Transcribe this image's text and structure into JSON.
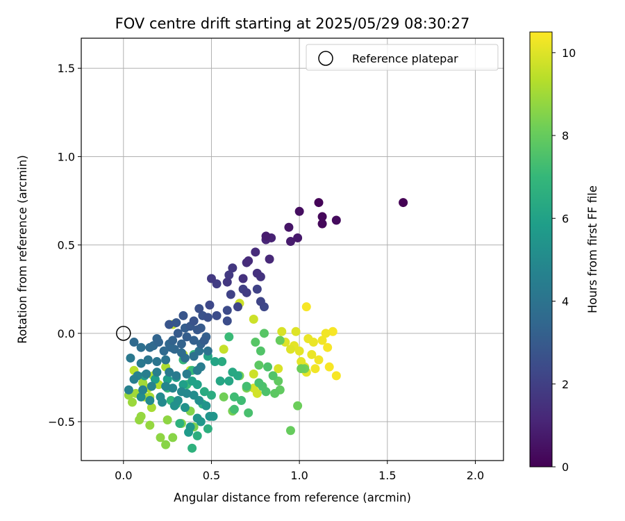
{
  "chart_data": {
    "type": "scatter",
    "title": "FOV centre drift starting at 2025/05/29 08:30:27",
    "xlabel": "Angular distance from reference (arcmin)",
    "ylabel": "Rotation from reference (arcmin)",
    "xlim": [
      -0.24,
      2.16
    ],
    "ylim": [
      -0.72,
      1.67
    ],
    "x_ticks": [
      0.0,
      0.5,
      1.0,
      1.5,
      2.0
    ],
    "x_tick_labels": [
      "0.0",
      "0.5",
      "1.0",
      "1.5",
      "2.0"
    ],
    "y_ticks": [
      -0.5,
      0.0,
      0.5,
      1.0,
      1.5
    ],
    "y_tick_labels": [
      "−0.5",
      "0.0",
      "0.5",
      "1.0",
      "1.5"
    ],
    "grid": true,
    "legend": {
      "position": "upper right",
      "entries": [
        "Reference platepar"
      ]
    },
    "reference_point": {
      "x": 0.0,
      "y": 0.0
    },
    "colorbar": {
      "label": "Hours from first FF file",
      "min": 0,
      "max": 10.5,
      "ticks": [
        0,
        2,
        4,
        6,
        8,
        10
      ],
      "tick_labels": [
        "0",
        "2",
        "4",
        "6",
        "8",
        "10"
      ],
      "colormap": [
        "#440154",
        "#482878",
        "#3e4989",
        "#31688e",
        "#26828e",
        "#1f9e89",
        "#35b779",
        "#6ece58",
        "#b5de2b",
        "#fde725"
      ]
    },
    "points": [
      [
        1.59,
        0.74,
        0.0
      ],
      [
        1.11,
        0.74,
        0.1
      ],
      [
        1.13,
        0.66,
        0.2
      ],
      [
        1.13,
        0.62,
        0.2
      ],
      [
        1.21,
        0.64,
        0.3
      ],
      [
        1.0,
        0.69,
        0.4
      ],
      [
        0.94,
        0.6,
        0.6
      ],
      [
        0.99,
        0.54,
        0.7
      ],
      [
        0.95,
        0.52,
        0.8
      ],
      [
        0.81,
        0.55,
        0.8
      ],
      [
        0.84,
        0.54,
        1.0
      ],
      [
        0.81,
        0.53,
        1.1
      ],
      [
        0.75,
        0.46,
        1.3
      ],
      [
        0.83,
        0.42,
        1.2
      ],
      [
        0.71,
        0.41,
        1.3
      ],
      [
        0.7,
        0.4,
        1.4
      ],
      [
        0.76,
        0.34,
        1.5
      ],
      [
        0.78,
        0.32,
        1.6
      ],
      [
        0.68,
        0.31,
        1.5
      ],
      [
        0.62,
        0.37,
        1.7
      ],
      [
        0.6,
        0.33,
        1.8
      ],
      [
        0.59,
        0.29,
        1.7
      ],
      [
        0.5,
        0.31,
        1.8
      ],
      [
        0.53,
        0.28,
        1.9
      ],
      [
        0.68,
        0.25,
        2.0
      ],
      [
        0.76,
        0.25,
        2.1
      ],
      [
        0.7,
        0.23,
        1.9
      ],
      [
        0.61,
        0.22,
        2.1
      ],
      [
        0.78,
        0.18,
        2.2
      ],
      [
        0.8,
        0.15,
        2.3
      ],
      [
        0.65,
        0.15,
        2.2
      ],
      [
        0.59,
        0.13,
        2.4
      ],
      [
        0.49,
        0.16,
        2.3
      ],
      [
        0.59,
        0.07,
        2.5
      ],
      [
        0.53,
        0.1,
        2.5
      ],
      [
        0.48,
        0.09,
        2.6
      ],
      [
        0.45,
        0.1,
        2.7
      ],
      [
        0.43,
        0.14,
        2.6
      ],
      [
        0.34,
        0.1,
        2.8
      ],
      [
        0.3,
        0.06,
        2.9
      ],
      [
        0.26,
        0.05,
        2.8
      ],
      [
        0.4,
        0.07,
        2.7
      ],
      [
        0.38,
        0.04,
        2.9
      ],
      [
        0.42,
        0.02,
        2.9
      ],
      [
        0.44,
        0.03,
        3.0
      ],
      [
        0.35,
        0.03,
        3.1
      ],
      [
        0.31,
        0.0,
        3.0
      ],
      [
        0.36,
        -0.02,
        3.1
      ],
      [
        0.4,
        -0.04,
        3.2
      ],
      [
        0.46,
        -0.04,
        3.1
      ],
      [
        0.47,
        -0.02,
        3.2
      ],
      [
        0.44,
        -0.06,
        3.3
      ],
      [
        0.33,
        -0.06,
        3.3
      ],
      [
        0.28,
        -0.04,
        3.3
      ],
      [
        0.19,
        -0.03,
        3.4
      ],
      [
        0.2,
        -0.05,
        3.4
      ],
      [
        0.26,
        -0.06,
        3.5
      ],
      [
        0.27,
        -0.08,
        3.5
      ],
      [
        0.29,
        -0.09,
        3.5
      ],
      [
        0.23,
        -0.1,
        3.6
      ],
      [
        0.17,
        -0.07,
        3.6
      ],
      [
        0.15,
        -0.08,
        3.7
      ],
      [
        0.1,
        -0.08,
        3.8
      ],
      [
        0.06,
        -0.05,
        3.6
      ],
      [
        0.33,
        -0.11,
        3.7
      ],
      [
        0.35,
        -0.14,
        3.8
      ],
      [
        0.4,
        -0.13,
        3.9
      ],
      [
        0.43,
        -0.1,
        3.9
      ],
      [
        0.48,
        -0.1,
        4.0
      ],
      [
        0.24,
        -0.15,
        4.0
      ],
      [
        0.19,
        -0.16,
        4.1
      ],
      [
        0.14,
        -0.15,
        4.1
      ],
      [
        0.1,
        -0.17,
        4.2
      ],
      [
        0.04,
        -0.14,
        4.2
      ],
      [
        0.26,
        -0.22,
        4.3
      ],
      [
        0.3,
        -0.24,
        4.3
      ],
      [
        0.36,
        -0.23,
        4.4
      ],
      [
        0.42,
        -0.21,
        4.4
      ],
      [
        0.44,
        -0.19,
        4.4
      ],
      [
        0.19,
        -0.22,
        4.5
      ],
      [
        0.13,
        -0.23,
        4.5
      ],
      [
        0.08,
        -0.24,
        4.6
      ],
      [
        0.06,
        -0.26,
        4.5
      ],
      [
        0.03,
        -0.32,
        4.6
      ],
      [
        0.11,
        -0.32,
        4.7
      ],
      [
        0.16,
        -0.3,
        4.7
      ],
      [
        0.24,
        -0.3,
        4.8
      ],
      [
        0.28,
        -0.31,
        4.8
      ],
      [
        0.33,
        -0.33,
        4.9
      ],
      [
        0.36,
        -0.34,
        4.9
      ],
      [
        0.21,
        -0.36,
        5.0
      ],
      [
        0.22,
        -0.39,
        5.0
      ],
      [
        0.15,
        -0.38,
        5.0
      ],
      [
        0.1,
        -0.36,
        5.1
      ],
      [
        0.4,
        -0.35,
        5.1
      ],
      [
        0.43,
        -0.38,
        5.2
      ],
      [
        0.29,
        -0.41,
        5.3
      ],
      [
        0.31,
        -0.38,
        5.2
      ],
      [
        0.35,
        -0.42,
        5.3
      ],
      [
        0.47,
        -0.41,
        5.4
      ],
      [
        0.49,
        -0.47,
        5.4
      ],
      [
        0.51,
        -0.47,
        5.5
      ],
      [
        0.42,
        -0.48,
        5.5
      ],
      [
        0.44,
        -0.5,
        5.6
      ],
      [
        0.38,
        -0.53,
        5.6
      ],
      [
        0.37,
        -0.56,
        5.7
      ],
      [
        0.12,
        -0.24,
        5.7
      ],
      [
        0.18,
        -0.26,
        5.8
      ],
      [
        0.25,
        -0.26,
        5.8
      ],
      [
        0.3,
        -0.25,
        5.9
      ],
      [
        0.34,
        -0.29,
        5.9
      ],
      [
        0.39,
        -0.27,
        6.0
      ],
      [
        0.42,
        -0.29,
        6.0
      ],
      [
        0.48,
        -0.13,
        6.1
      ],
      [
        0.52,
        -0.16,
        6.1
      ],
      [
        0.55,
        -0.27,
        6.2
      ],
      [
        0.6,
        -0.27,
        6.2
      ],
      [
        0.62,
        -0.22,
        6.3
      ],
      [
        0.65,
        -0.24,
        6.3
      ],
      [
        0.56,
        -0.16,
        6.4
      ],
      [
        0.46,
        -0.33,
        6.4
      ],
      [
        0.5,
        -0.35,
        6.5
      ],
      [
        0.45,
        -0.4,
        6.5
      ],
      [
        0.48,
        -0.54,
        6.6
      ],
      [
        0.42,
        -0.58,
        6.6
      ],
      [
        0.39,
        -0.65,
        6.7
      ],
      [
        0.32,
        -0.51,
        6.7
      ],
      [
        0.3,
        -0.4,
        6.8
      ],
      [
        0.27,
        -0.38,
        6.8
      ],
      [
        0.25,
        -0.31,
        6.9
      ],
      [
        0.34,
        -0.15,
        6.9
      ],
      [
        0.4,
        -0.12,
        7.0
      ],
      [
        0.39,
        -0.21,
        7.0
      ],
      [
        0.36,
        -0.29,
        7.1
      ],
      [
        0.6,
        -0.02,
        7.1
      ],
      [
        0.63,
        -0.36,
        7.2
      ],
      [
        0.67,
        -0.38,
        7.2
      ],
      [
        0.7,
        -0.3,
        7.3
      ],
      [
        0.63,
        -0.43,
        7.3
      ],
      [
        0.71,
        -0.45,
        7.4
      ],
      [
        0.77,
        -0.28,
        7.4
      ],
      [
        0.79,
        -0.3,
        7.5
      ],
      [
        0.81,
        -0.33,
        7.5
      ],
      [
        0.82,
        -0.19,
        7.5
      ],
      [
        0.85,
        -0.24,
        7.6
      ],
      [
        0.78,
        -0.1,
        7.6
      ],
      [
        0.8,
        0.0,
        7.7
      ],
      [
        0.75,
        -0.05,
        7.7
      ],
      [
        0.77,
        -0.18,
        7.8
      ],
      [
        0.86,
        -0.34,
        7.8
      ],
      [
        0.88,
        -0.27,
        7.9
      ],
      [
        0.89,
        -0.32,
        7.9
      ],
      [
        0.89,
        -0.04,
        8.0
      ],
      [
        0.95,
        -0.55,
        8.0
      ],
      [
        0.99,
        -0.41,
        8.1
      ],
      [
        1.01,
        -0.2,
        8.1
      ],
      [
        1.03,
        -0.2,
        8.2
      ],
      [
        0.57,
        -0.36,
        8.2
      ],
      [
        0.62,
        -0.44,
        8.3
      ],
      [
        0.66,
        -0.24,
        8.3
      ],
      [
        0.7,
        -0.31,
        8.4
      ],
      [
        0.4,
        -0.53,
        8.4
      ],
      [
        0.38,
        -0.44,
        8.5
      ],
      [
        0.33,
        -0.51,
        8.5
      ],
      [
        0.28,
        -0.59,
        8.6
      ],
      [
        0.24,
        -0.63,
        8.6
      ],
      [
        0.25,
        -0.49,
        8.7
      ],
      [
        0.21,
        -0.59,
        8.7
      ],
      [
        0.15,
        -0.52,
        8.8
      ],
      [
        0.1,
        -0.47,
        8.8
      ],
      [
        0.09,
        -0.49,
        8.8
      ],
      [
        0.05,
        -0.39,
        8.9
      ],
      [
        0.03,
        -0.35,
        8.9
      ],
      [
        0.07,
        -0.34,
        9.0
      ],
      [
        0.11,
        -0.28,
        9.0
      ],
      [
        0.15,
        -0.36,
        9.1
      ],
      [
        0.16,
        -0.42,
        9.1
      ],
      [
        0.17,
        -0.24,
        9.2
      ],
      [
        0.24,
        -0.19,
        9.2
      ],
      [
        0.2,
        -0.29,
        9.3
      ],
      [
        0.14,
        -0.31,
        9.3
      ],
      [
        0.12,
        -0.36,
        9.4
      ],
      [
        0.06,
        -0.21,
        9.4
      ],
      [
        0.34,
        -0.12,
        9.5
      ],
      [
        0.38,
        -0.21,
        9.5
      ],
      [
        0.28,
        0.05,
        9.6
      ],
      [
        0.57,
        -0.09,
        9.6
      ],
      [
        0.66,
        0.17,
        9.7
      ],
      [
        0.74,
        0.08,
        9.7
      ],
      [
        0.74,
        -0.23,
        9.7
      ],
      [
        0.76,
        -0.34,
        9.8
      ],
      [
        0.74,
        -0.31,
        9.8
      ],
      [
        0.79,
        -0.3,
        9.9
      ],
      [
        0.88,
        -0.2,
        9.9
      ],
      [
        0.9,
        0.01,
        9.9
      ],
      [
        0.92,
        -0.05,
        10.0
      ],
      [
        0.95,
        -0.09,
        10.0
      ],
      [
        0.98,
        0.01,
        10.0
      ],
      [
        1.0,
        -0.1,
        10.1
      ],
      [
        1.01,
        -0.16,
        10.1
      ],
      [
        1.04,
        -0.22,
        10.1
      ],
      [
        1.05,
        -0.03,
        10.2
      ],
      [
        1.08,
        -0.05,
        10.2
      ],
      [
        1.07,
        -0.12,
        10.2
      ],
      [
        1.09,
        -0.2,
        10.3
      ],
      [
        1.11,
        -0.15,
        10.3
      ],
      [
        1.13,
        -0.04,
        10.3
      ],
      [
        1.15,
        0.0,
        10.3
      ],
      [
        1.16,
        -0.08,
        10.4
      ],
      [
        1.17,
        -0.19,
        10.4
      ],
      [
        1.19,
        0.01,
        10.4
      ],
      [
        1.21,
        -0.24,
        10.4
      ],
      [
        1.04,
        0.15,
        10.4
      ],
      [
        1.03,
        -0.19,
        10.2
      ],
      [
        0.97,
        -0.07,
        10.1
      ]
    ]
  }
}
